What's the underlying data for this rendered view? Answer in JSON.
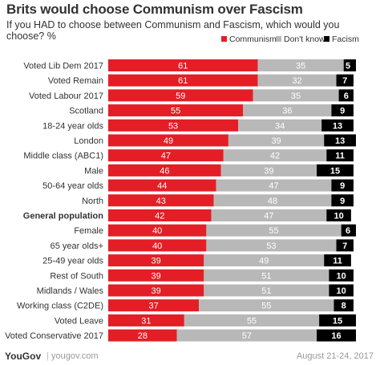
{
  "footer": {
    "logo": "YouGov",
    "separator": "|",
    "site": "yougov.com",
    "date": "August 21-24, 2017"
  },
  "chart_data": {
    "type": "bar",
    "orientation": "horizontal",
    "stacked": true,
    "title": "Brits would choose Communism over Fascism",
    "subtitle": "If you HAD to choose between Communism and Fascism, which would you choose? %",
    "legend_position": "top-right",
    "xlim": [
      0,
      100
    ],
    "categories": [
      "Voted Lib Dem 2017",
      "Voted Remain",
      "Voted Labour 2017",
      "Scotland",
      "18-24 year olds",
      "London",
      "Middle class (ABC1)",
      "Male",
      "50-64 year olds",
      "North",
      "General population",
      "Female",
      "65 year olds+",
      "25-49 year olds",
      "Rest of South",
      "Midlands / Wales",
      "Working class (C2DE)",
      "Voted Leave",
      "Voted Conservative 2017"
    ],
    "highlight_category": "General population",
    "series": [
      {
        "name": "Communism",
        "color": "#e41e26",
        "values": [
          61,
          61,
          59,
          55,
          53,
          49,
          47,
          46,
          44,
          43,
          42,
          40,
          40,
          39,
          39,
          39,
          37,
          31,
          28
        ]
      },
      {
        "name": "Don't know",
        "color": "#b8b8b8",
        "values": [
          35,
          32,
          35,
          36,
          34,
          39,
          42,
          39,
          47,
          48,
          47,
          55,
          53,
          49,
          51,
          51,
          55,
          55,
          57
        ]
      },
      {
        "name": "Facism",
        "color": "#000000",
        "values": [
          5,
          7,
          6,
          9,
          13,
          13,
          11,
          15,
          9,
          9,
          10,
          6,
          7,
          11,
          10,
          10,
          8,
          15,
          16
        ]
      }
    ]
  }
}
